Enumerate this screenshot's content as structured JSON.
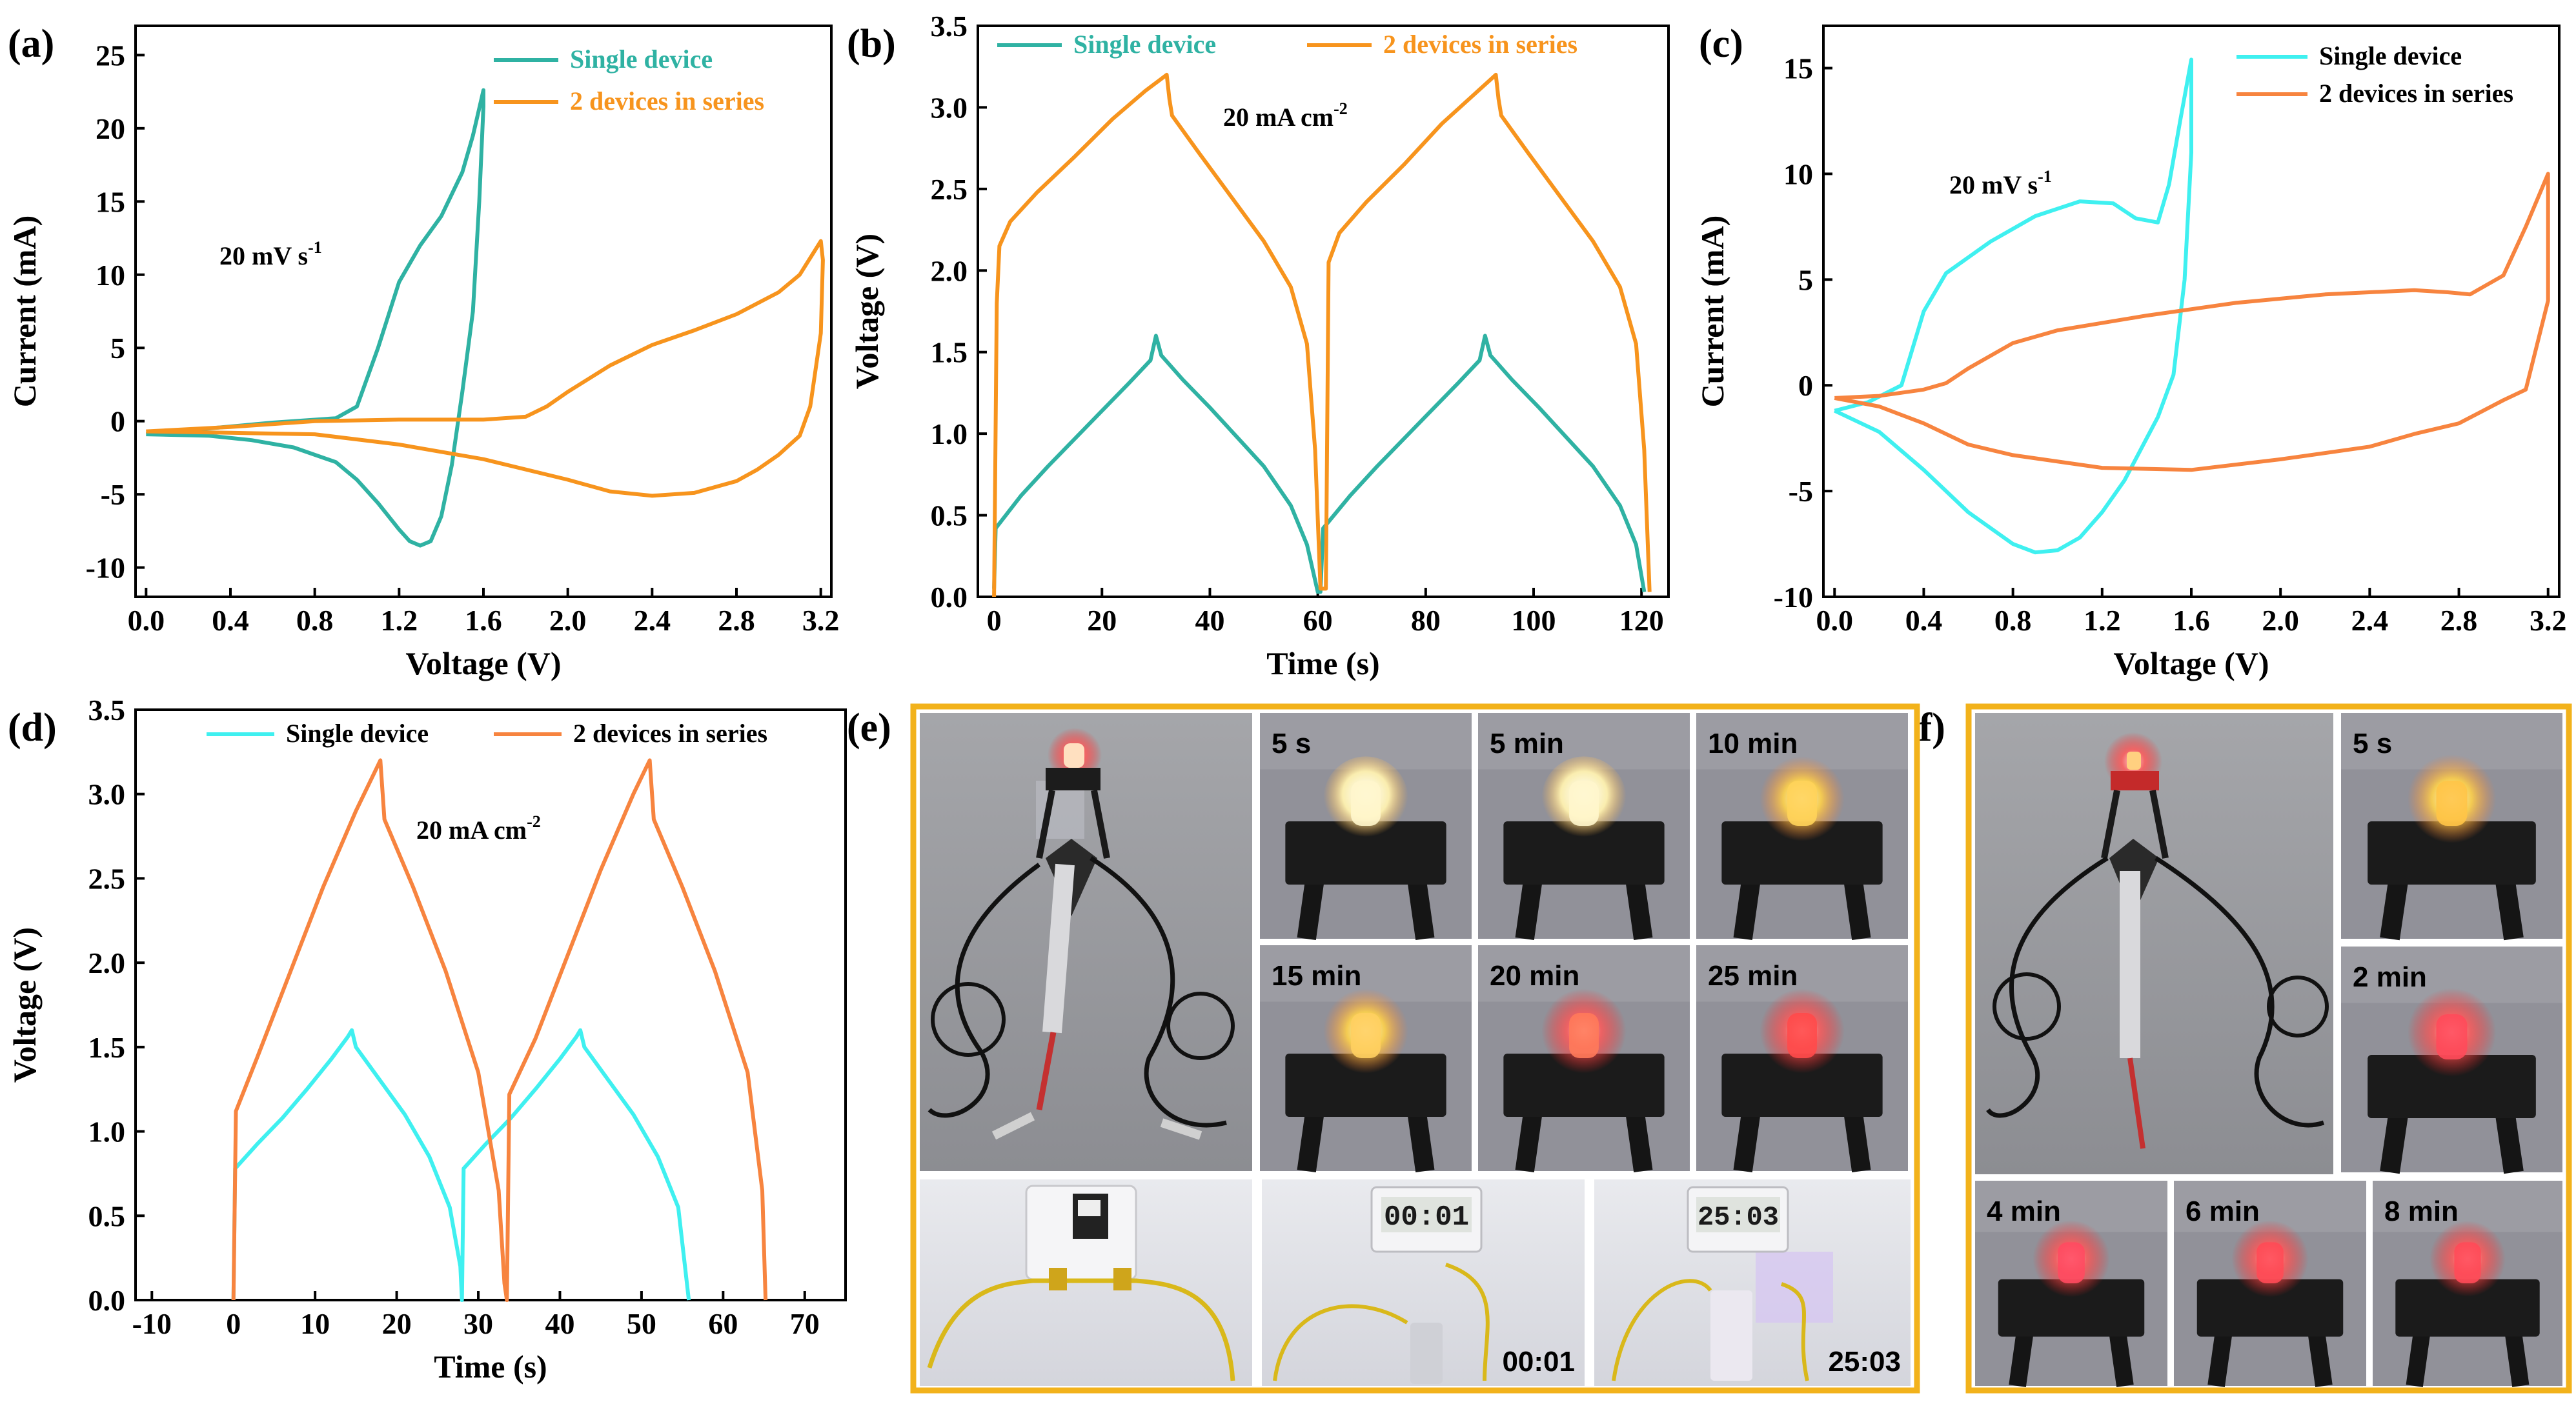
{
  "colors": {
    "teal": "#2fb2a3",
    "orange": "#f7941d",
    "cyan": "#3ff0f0",
    "orange2": "#f7843f",
    "frame": "#f2b21b"
  },
  "chart_data": [
    {
      "panel": "(a)",
      "type": "line",
      "xlabel": "Voltage (V)",
      "ylabel": "Current (mA)",
      "xlim": [
        -0.05,
        3.25
      ],
      "ylim": [
        -12,
        27
      ],
      "xticks": [
        0.0,
        0.4,
        0.8,
        1.2,
        1.6,
        2.0,
        2.4,
        2.8,
        3.2
      ],
      "xtick_labels": [
        "0.0",
        "0.4",
        "0.8",
        "1.2",
        "1.6",
        "2.0",
        "2.4",
        "2.8",
        "3.2"
      ],
      "yticks": [
        -10,
        -5,
        0,
        5,
        10,
        15,
        20,
        25
      ],
      "ytick_labels": [
        "-10",
        "-5",
        "0",
        "5",
        "10",
        "15",
        "20",
        "25"
      ],
      "annotation": {
        "text": "20 mV s",
        "sup": "-1",
        "x": 0.38,
        "y": 11
      },
      "legend": {
        "placement": "top-right"
      },
      "series": [
        {
          "name": "Single device",
          "color": "#2fb2a3",
          "x": [
            0.0,
            0.3,
            0.6,
            0.9,
            1.0,
            1.1,
            1.2,
            1.3,
            1.4,
            1.5,
            1.55,
            1.6,
            1.6,
            1.58,
            1.55,
            1.5,
            1.45,
            1.4,
            1.35,
            1.3,
            1.25,
            1.2,
            1.1,
            1.0,
            0.9,
            0.7,
            0.5,
            0.3,
            0.0
          ],
          "y": [
            -0.9,
            -0.5,
            -0.1,
            0.2,
            1.0,
            5.0,
            9.5,
            12.0,
            14.0,
            17.0,
            19.5,
            22.6,
            21.5,
            15.0,
            7.5,
            2.0,
            -3.0,
            -6.5,
            -8.2,
            -8.5,
            -8.2,
            -7.4,
            -5.6,
            -4.0,
            -2.8,
            -1.8,
            -1.3,
            -1.0,
            -0.9
          ]
        },
        {
          "name": "2 devices in series",
          "color": "#f7941d",
          "x": [
            0.0,
            0.4,
            0.8,
            1.2,
            1.6,
            1.8,
            1.9,
            2.0,
            2.2,
            2.4,
            2.6,
            2.8,
            3.0,
            3.1,
            3.2,
            3.21,
            3.2,
            3.15,
            3.1,
            3.0,
            2.9,
            2.8,
            2.6,
            2.4,
            2.2,
            2.0,
            1.6,
            1.2,
            0.8,
            0.4,
            0.0
          ],
          "y": [
            -0.7,
            -0.4,
            0.0,
            0.1,
            0.1,
            0.3,
            1.0,
            2.0,
            3.8,
            5.2,
            6.2,
            7.3,
            8.8,
            10.0,
            12.3,
            11.0,
            6.0,
            1.0,
            -1.0,
            -2.3,
            -3.3,
            -4.1,
            -4.9,
            -5.1,
            -4.8,
            -4.0,
            -2.6,
            -1.6,
            -0.9,
            -0.8,
            -0.7
          ]
        }
      ]
    },
    {
      "panel": "(b)",
      "type": "line",
      "xlabel": "Time (s)",
      "ylabel": "Voltage (V)",
      "xlim": [
        -3,
        125
      ],
      "ylim": [
        0,
        3.5
      ],
      "xticks": [
        0,
        20,
        40,
        60,
        80,
        100,
        120
      ],
      "xtick_labels": [
        "0",
        "20",
        "40",
        "60",
        "80",
        "100",
        "120"
      ],
      "yticks": [
        0.0,
        0.5,
        1.0,
        1.5,
        2.0,
        2.5,
        3.0,
        3.5
      ],
      "ytick_labels": [
        "0.0",
        "0.5",
        "1.0",
        "1.5",
        "2.0",
        "2.5",
        "3.0",
        "3.5"
      ],
      "annotation": {
        "text": "20 mA cm",
        "sup": "-2",
        "x": 42,
        "y": 2.9
      },
      "legend": {
        "placement": "top"
      },
      "series": [
        {
          "name": "Single device",
          "color": "#2fb2a3",
          "x": [
            0,
            0.3,
            5,
            10,
            15,
            20,
            25,
            29,
            30,
            31,
            35,
            40,
            45,
            50,
            55,
            58,
            60,
            60.5,
            61,
            66,
            71,
            76,
            81,
            86,
            90,
            91,
            92,
            96,
            101,
            106,
            111,
            116,
            119,
            120.5
          ],
          "y": [
            0.05,
            0.42,
            0.62,
            0.8,
            0.97,
            1.14,
            1.31,
            1.45,
            1.6,
            1.48,
            1.33,
            1.16,
            0.98,
            0.8,
            0.56,
            0.32,
            0.03,
            0.03,
            0.42,
            0.62,
            0.8,
            0.97,
            1.14,
            1.31,
            1.45,
            1.6,
            1.48,
            1.33,
            1.16,
            0.98,
            0.8,
            0.56,
            0.32,
            0.03
          ]
        },
        {
          "name": "2 devices in series",
          "color": "#f7941d",
          "x": [
            0,
            0.5,
            1,
            3,
            8,
            15,
            22,
            28,
            32,
            32.5,
            33,
            38,
            44,
            50,
            55,
            58,
            59.5,
            60.5,
            61.5,
            62,
            64,
            69,
            76,
            83,
            89,
            93,
            93.5,
            94,
            99,
            105,
            111,
            116,
            119,
            120.5,
            121.5
          ],
          "y": [
            0.0,
            1.8,
            2.15,
            2.3,
            2.48,
            2.7,
            2.93,
            3.1,
            3.2,
            3.05,
            2.95,
            2.72,
            2.45,
            2.18,
            1.9,
            1.55,
            0.9,
            0.05,
            0.05,
            2.05,
            2.23,
            2.42,
            2.65,
            2.9,
            3.08,
            3.2,
            3.05,
            2.95,
            2.72,
            2.45,
            2.18,
            1.9,
            1.55,
            0.9,
            0.03
          ]
        }
      ]
    },
    {
      "panel": "(c)",
      "type": "line",
      "xlabel": "Voltage (V)",
      "ylabel": "Current (mA)",
      "xlim": [
        -0.05,
        3.25
      ],
      "ylim": [
        -10,
        17
      ],
      "xticks": [
        0.0,
        0.4,
        0.8,
        1.2,
        1.6,
        2.0,
        2.4,
        2.8,
        3.2
      ],
      "xtick_labels": [
        "0.0",
        "0.4",
        "0.8",
        "1.2",
        "1.6",
        "2.0",
        "2.4",
        "2.8",
        "3.2"
      ],
      "yticks": [
        -10,
        -5,
        0,
        5,
        10,
        15
      ],
      "ytick_labels": [
        "-10",
        "-5",
        "0",
        "5",
        "10",
        "15"
      ],
      "annotation": {
        "text": "20 mV s",
        "sup": "-1",
        "x": 0.55,
        "y": 9.2
      },
      "legend": {
        "placement": "top-right"
      },
      "series": [
        {
          "name": "Single device",
          "color": "#3ff0f0",
          "x": [
            0.0,
            0.15,
            0.3,
            0.4,
            0.5,
            0.7,
            0.9,
            1.1,
            1.25,
            1.35,
            1.45,
            1.5,
            1.55,
            1.6,
            1.6,
            1.57,
            1.52,
            1.45,
            1.4,
            1.3,
            1.2,
            1.1,
            1.0,
            0.9,
            0.8,
            0.6,
            0.4,
            0.2,
            0.0
          ],
          "y": [
            -1.2,
            -0.8,
            0.0,
            3.5,
            5.3,
            6.8,
            8.0,
            8.7,
            8.6,
            7.9,
            7.7,
            9.5,
            12.5,
            15.4,
            11.0,
            5.0,
            0.5,
            -1.5,
            -2.5,
            -4.5,
            -6.0,
            -7.2,
            -7.8,
            -7.9,
            -7.5,
            -6.0,
            -4.0,
            -2.2,
            -1.2
          ]
        },
        {
          "name": "2 devices in series",
          "color": "#f7843f",
          "x": [
            0.0,
            0.2,
            0.4,
            0.5,
            0.6,
            0.8,
            1.0,
            1.4,
            1.8,
            2.2,
            2.6,
            2.75,
            2.85,
            3.0,
            3.1,
            3.2,
            3.2,
            3.1,
            3.0,
            2.8,
            2.6,
            2.4,
            2.0,
            1.6,
            1.2,
            0.8,
            0.6,
            0.4,
            0.2,
            0.0
          ],
          "y": [
            -0.6,
            -0.5,
            -0.2,
            0.1,
            0.8,
            2.0,
            2.6,
            3.3,
            3.9,
            4.3,
            4.5,
            4.4,
            4.3,
            5.2,
            7.5,
            10.0,
            4.0,
            -0.2,
            -0.7,
            -1.8,
            -2.3,
            -2.9,
            -3.5,
            -4.0,
            -3.9,
            -3.3,
            -2.8,
            -1.8,
            -1.0,
            -0.6
          ]
        }
      ]
    },
    {
      "panel": "(d)",
      "type": "line",
      "xlabel": "Time (s)",
      "ylabel": "Voltage (V)",
      "xlim": [
        -12,
        75
      ],
      "ylim": [
        0,
        3.5
      ],
      "xticks": [
        -10,
        0,
        10,
        20,
        30,
        40,
        50,
        60,
        70
      ],
      "xtick_labels": [
        "-10",
        "0",
        "10",
        "20",
        "30",
        "40",
        "50",
        "60",
        "70"
      ],
      "yticks": [
        0.0,
        0.5,
        1.0,
        1.5,
        2.0,
        2.5,
        3.0,
        3.5
      ],
      "ytick_labels": [
        "0.0",
        "0.5",
        "1.0",
        "1.5",
        "2.0",
        "2.5",
        "3.0",
        "3.5"
      ],
      "annotation": {
        "text": "20 mA cm",
        "sup": "-2",
        "x": 24,
        "y": 2.68
      },
      "legend": {
        "placement": "top"
      },
      "series": [
        {
          "name": "Single device",
          "color": "#3ff0f0",
          "x": [
            0,
            0.2,
            3,
            6,
            9,
            12,
            14,
            14.5,
            15,
            18,
            21,
            24,
            26.5,
            27.8,
            28,
            28.2,
            31,
            34,
            37,
            40,
            42,
            42.5,
            43,
            46,
            49,
            52,
            54.5,
            55.8
          ],
          "y": [
            0.0,
            0.78,
            0.93,
            1.08,
            1.25,
            1.43,
            1.56,
            1.6,
            1.5,
            1.3,
            1.1,
            0.85,
            0.55,
            0.2,
            0.0,
            0.78,
            0.93,
            1.08,
            1.25,
            1.43,
            1.56,
            1.6,
            1.5,
            1.3,
            1.1,
            0.85,
            0.55,
            0.0
          ]
        },
        {
          "name": "2 devices in series",
          "color": "#f7843f",
          "x": [
            0,
            0.3,
            3,
            7,
            11,
            15,
            17.5,
            18,
            18.5,
            22,
            26,
            30,
            32.5,
            33.2,
            33.5,
            33.8,
            37,
            41,
            45,
            49,
            50.5,
            51,
            51.5,
            55,
            59,
            63,
            64.8,
            65.2
          ],
          "y": [
            0.0,
            1.12,
            1.45,
            1.95,
            2.45,
            2.9,
            3.15,
            3.2,
            2.85,
            2.45,
            1.95,
            1.35,
            0.65,
            0.1,
            0.0,
            1.22,
            1.55,
            2.05,
            2.55,
            3.0,
            3.15,
            3.2,
            2.85,
            2.45,
            1.95,
            1.35,
            0.65,
            0.0
          ]
        }
      ]
    }
  ],
  "panel_e": {
    "letter": "(e)",
    "tiles": [
      "5 s",
      "5 min",
      "10 min",
      "15 min",
      "20 min",
      "25 min"
    ],
    "timer_start": "00:01",
    "timer_end": "25:03"
  },
  "panel_f": {
    "letter": "(f)",
    "tiles": [
      "5 s",
      "2 min",
      "4 min",
      "6 min",
      "8 min"
    ]
  }
}
